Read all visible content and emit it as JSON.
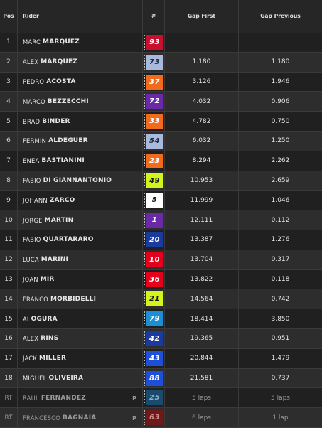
{
  "header": {
    "pos": "Pos",
    "rider": "Rider",
    "number": "#",
    "gap_first": "Gap First",
    "gap_previous": "Gap Previous"
  },
  "rows": [
    {
      "pos": "1",
      "first": "MARC",
      "last": "MARQUEZ",
      "num": "93",
      "gap_first": "",
      "gap_previous": "",
      "badge_bg": "#c8102e",
      "badge_fg": "#ffffff"
    },
    {
      "pos": "2",
      "first": "ALEX",
      "last": "MARQUEZ",
      "num": "73",
      "gap_first": "1.180",
      "gap_previous": "1.180",
      "badge_bg": "#a9b9dc",
      "badge_fg": "#1f2a44"
    },
    {
      "pos": "3",
      "first": "PEDRO",
      "last": "ACOSTA",
      "num": "37",
      "gap_first": "3.126",
      "gap_previous": "1.946",
      "badge_bg": "#f26a1b",
      "badge_fg": "#ffffff"
    },
    {
      "pos": "4",
      "first": "MARCO",
      "last": "BEZZECCHI",
      "num": "72",
      "gap_first": "4.032",
      "gap_previous": "0.906",
      "badge_bg": "#6a2aa8",
      "badge_fg": "#ffffff"
    },
    {
      "pos": "5",
      "first": "BRAD",
      "last": "BINDER",
      "num": "33",
      "gap_first": "4.782",
      "gap_previous": "0.750",
      "badge_bg": "#f26a1b",
      "badge_fg": "#ffffff"
    },
    {
      "pos": "6",
      "first": "FERMIN",
      "last": "ALDEGUER",
      "num": "54",
      "gap_first": "6.032",
      "gap_previous": "1.250",
      "badge_bg": "#a9b9dc",
      "badge_fg": "#1f2a44"
    },
    {
      "pos": "7",
      "first": "ENEA",
      "last": "BASTIANINI",
      "num": "23",
      "gap_first": "8.294",
      "gap_previous": "2.262",
      "badge_bg": "#f26a1b",
      "badge_fg": "#ffffff"
    },
    {
      "pos": "8",
      "first": "FABIO",
      "last": "DI GIANNANTONIO",
      "num": "49",
      "gap_first": "10.953",
      "gap_previous": "2.659",
      "badge_bg": "#d4f51c",
      "badge_fg": "#1a1a1a"
    },
    {
      "pos": "9",
      "first": "JOHANN",
      "last": "ZARCO",
      "num": "5",
      "gap_first": "11.999",
      "gap_previous": "1.046",
      "badge_bg": "#ffffff",
      "badge_fg": "#1a1a1a"
    },
    {
      "pos": "10",
      "first": "JORGE",
      "last": "MARTIN",
      "num": "1",
      "gap_first": "12.111",
      "gap_previous": "0.112",
      "badge_bg": "#6a2aa8",
      "badge_fg": "#ffffff"
    },
    {
      "pos": "11",
      "first": "FABIO",
      "last": "QUARTARARO",
      "num": "20",
      "gap_first": "13.387",
      "gap_previous": "1.276",
      "badge_bg": "#1a3a9e",
      "badge_fg": "#ffffff"
    },
    {
      "pos": "12",
      "first": "LUCA",
      "last": "MARINI",
      "num": "10",
      "gap_first": "13.704",
      "gap_previous": "0.317",
      "badge_bg": "#e4001b",
      "badge_fg": "#ffffff"
    },
    {
      "pos": "13",
      "first": "JOAN",
      "last": "MIR",
      "num": "36",
      "gap_first": "13.822",
      "gap_previous": "0.118",
      "badge_bg": "#e4001b",
      "badge_fg": "#ffffff"
    },
    {
      "pos": "14",
      "first": "FRANCO",
      "last": "MORBIDELLI",
      "num": "21",
      "gap_first": "14.564",
      "gap_previous": "0.742",
      "badge_bg": "#d4f51c",
      "badge_fg": "#1a1a1a"
    },
    {
      "pos": "15",
      "first": "AI",
      "last": "OGURA",
      "num": "79",
      "gap_first": "18.414",
      "gap_previous": "3.850",
      "badge_bg": "#1a8fd6",
      "badge_fg": "#ffffff"
    },
    {
      "pos": "16",
      "first": "ALEX",
      "last": "RINS",
      "num": "42",
      "gap_first": "19.365",
      "gap_previous": "0.951",
      "badge_bg": "#1a3a9e",
      "badge_fg": "#ffffff"
    },
    {
      "pos": "17",
      "first": "JACK",
      "last": "MILLER",
      "num": "43",
      "gap_first": "20.844",
      "gap_previous": "1.479",
      "badge_bg": "#1d4fd8",
      "badge_fg": "#ffffff"
    },
    {
      "pos": "18",
      "first": "MIGUEL",
      "last": "OLIVEIRA",
      "num": "88",
      "gap_first": "21.581",
      "gap_previous": "0.737",
      "badge_bg": "#1d4fd8",
      "badge_fg": "#ffffff"
    },
    {
      "pos": "RT",
      "first": "RAUL",
      "last": "FERNANDEZ",
      "num": "25",
      "gap_first": "5 laps",
      "gap_previous": "5 laps",
      "badge_bg": "#1a4a6e",
      "badge_fg": "#8fb4d0",
      "flag": "P",
      "retired": true
    },
    {
      "pos": "RT",
      "first": "FRANCESCO",
      "last": "BAGNAIA",
      "num": "63",
      "gap_first": "6 laps",
      "gap_previous": "1 lap",
      "badge_bg": "#6e1a1a",
      "badge_fg": "#d08f8f",
      "flag": "P",
      "retired": true
    }
  ]
}
